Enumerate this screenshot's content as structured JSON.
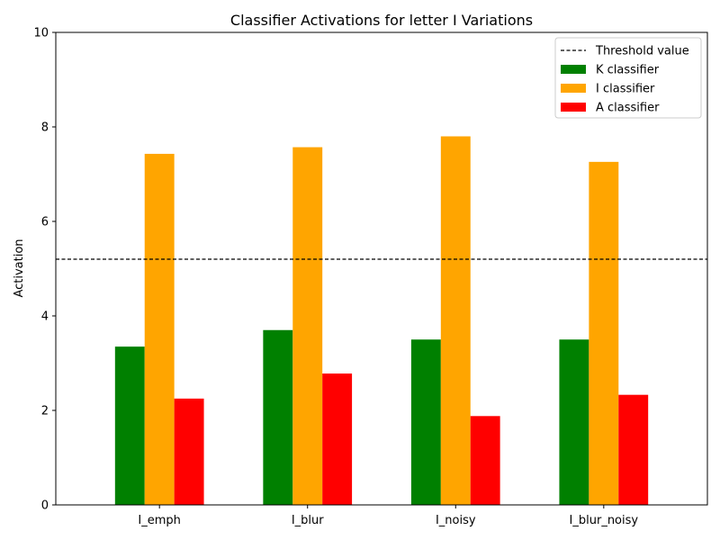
{
  "chart_data": {
    "type": "bar",
    "title": "Classifier Activations for letter I Variations",
    "xlabel": "",
    "ylabel": "Activation",
    "ylim": [
      0,
      10
    ],
    "yticks": [
      0,
      2,
      4,
      6,
      8,
      10
    ],
    "categories": [
      "I_emph",
      "I_blur",
      "I_noisy",
      "I_blur_noisy"
    ],
    "series": [
      {
        "name": "K classifier",
        "color": "#008000",
        "values": [
          3.35,
          3.7,
          3.5,
          3.5
        ]
      },
      {
        "name": "I classifier",
        "color": "#ffa500",
        "values": [
          7.43,
          7.57,
          7.8,
          7.26
        ]
      },
      {
        "name": "A classifier",
        "color": "#ff0000",
        "values": [
          2.25,
          2.78,
          1.88,
          2.33
        ]
      }
    ],
    "threshold": {
      "label": "Threshold value",
      "value": 5.2,
      "color": "#000000",
      "style": "dashed"
    },
    "legend_position": "top-right",
    "grid": false
  }
}
